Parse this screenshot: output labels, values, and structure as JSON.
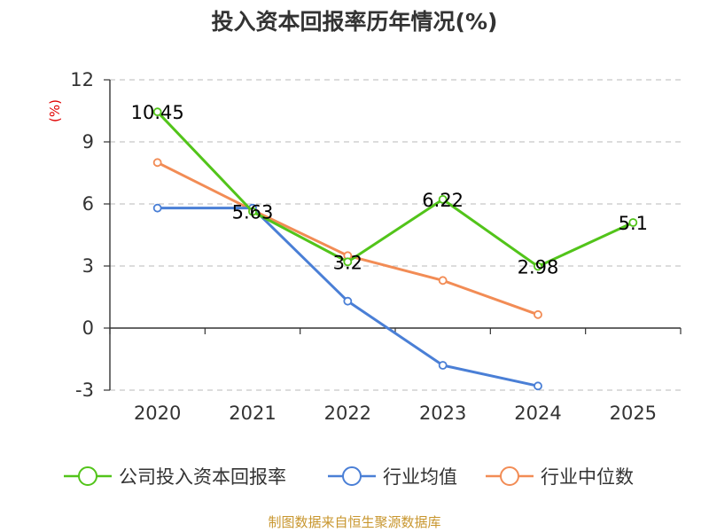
{
  "chart_data": {
    "type": "line",
    "title": "投入资本回报率历年情况(%)",
    "unit_label": "(%)",
    "categories": [
      "2020",
      "2021",
      "2022",
      "2023",
      "2024",
      "2025"
    ],
    "ylim": [
      -3,
      12
    ],
    "yticks": [
      12,
      9,
      6,
      3,
      0,
      -3
    ],
    "grid": true,
    "legend_position": "bottom",
    "series": [
      {
        "name": "公司投入资本回报率",
        "color": "#52c41a",
        "values": [
          10.45,
          5.63,
          3.2,
          6.22,
          2.98,
          5.1
        ],
        "labels": [
          "10.45",
          "5.63",
          "3.2",
          "6.22",
          "2.98",
          "5.1"
        ]
      },
      {
        "name": "行业均值",
        "color": "#4a7fd6",
        "values": [
          5.8,
          5.8,
          1.3,
          -1.8,
          -2.8,
          null
        ]
      },
      {
        "name": "行业中位数",
        "color": "#f28c55",
        "values": [
          8.0,
          5.7,
          3.5,
          2.3,
          0.65,
          null
        ]
      }
    ]
  },
  "source": "制图数据来自恒生聚源数据库"
}
